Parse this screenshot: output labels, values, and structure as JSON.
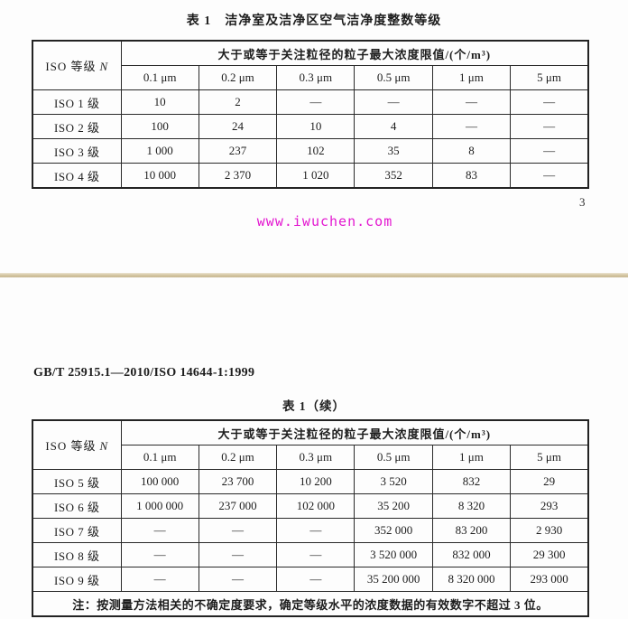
{
  "page1": {
    "table_title": "表 1　洁净室及洁净区空气洁净度整数等级",
    "page_number": "3",
    "watermark": "www.iwuchen.com"
  },
  "page2": {
    "doc_code": "GB/T 25915.1—2010/ISO 14644-1:1999",
    "table_title": "表 1（续）"
  },
  "table_common": {
    "iso_header_prefix": "ISO 等级",
    "iso_header_var": "N",
    "span_header": "大于或等于关注粒径的粒子最大浓度限值/(个/m³)",
    "sub_headers": [
      "0.1 μm",
      "0.2 μm",
      "0.3 μm",
      "0.5 μm",
      "1 μm",
      "5 μm"
    ]
  },
  "table1": {
    "rows": [
      {
        "label": "ISO 1 级",
        "values": [
          "10",
          "2",
          "—",
          "—",
          "—",
          "—"
        ]
      },
      {
        "label": "ISO 2 级",
        "values": [
          "100",
          "24",
          "10",
          "4",
          "—",
          "—"
        ]
      },
      {
        "label": "ISO 3 级",
        "values": [
          "1 000",
          "237",
          "102",
          "35",
          "8",
          "—"
        ]
      },
      {
        "label": "ISO 4 级",
        "values": [
          "10 000",
          "2 370",
          "1 020",
          "352",
          "83",
          "—"
        ]
      }
    ]
  },
  "table2": {
    "rows": [
      {
        "label": "ISO 5 级",
        "values": [
          "100 000",
          "23 700",
          "10 200",
          "3 520",
          "832",
          "29"
        ]
      },
      {
        "label": "ISO 6 级",
        "values": [
          "1 000 000",
          "237 000",
          "102 000",
          "35 200",
          "8 320",
          "293"
        ]
      },
      {
        "label": "ISO 7 级",
        "values": [
          "—",
          "—",
          "—",
          "352 000",
          "83 200",
          "2 930"
        ]
      },
      {
        "label": "ISO 8 级",
        "values": [
          "—",
          "—",
          "—",
          "3 520 000",
          "832 000",
          "29 300"
        ]
      },
      {
        "label": "ISO 9 级",
        "values": [
          "—",
          "—",
          "—",
          "35 200 000",
          "8 320 000",
          "293 000"
        ]
      }
    ],
    "note": "注：按测量方法相关的不确定度要求，确定等级水平的浓度数据的有效数字不超过 3 位。"
  },
  "colors": {
    "watermark": "#e318d0",
    "divider": "#d5c7a4",
    "border": "#232323"
  }
}
